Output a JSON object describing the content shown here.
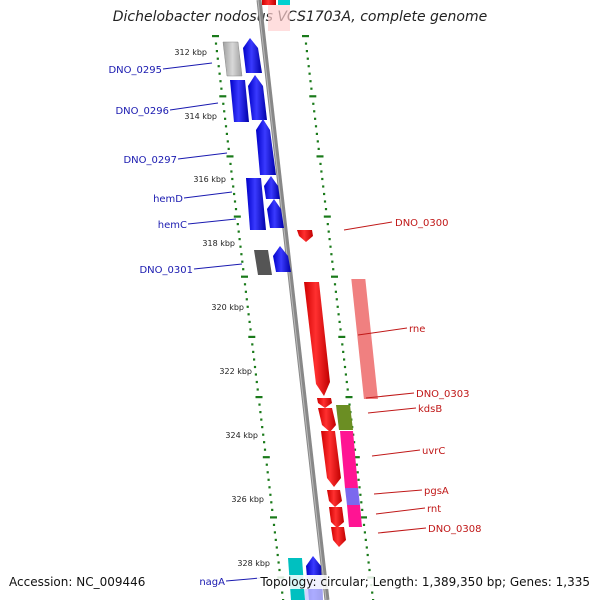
{
  "title": "Dichelobacter nodosus VCS1703A, complete genome",
  "accession": "Accession: NC_009446",
  "topology": "Topology: circular; Length: 1,389,350 bp; Genes: 1,335",
  "kbp_ticks": [
    "312 kbp",
    "314 kbp",
    "316 kbp",
    "318 kbp",
    "320 kbp",
    "322 kbp",
    "324 kbp",
    "326 kbp",
    "328 kbp"
  ],
  "left_labels": [
    "DNO_0295",
    "DNO_0296",
    "DNO_0297",
    "hemD",
    "hemC",
    "DNO_0301",
    "nagA"
  ],
  "right_labels": [
    "DNO_0300",
    "rne",
    "DNO_0303",
    "kdsB",
    "uvrC",
    "pgsA",
    "rnt",
    "DNO_0308"
  ],
  "colors": {
    "forward_gene": "#0000e0",
    "reverse_gene": "#e00000",
    "backbone": "#888888",
    "scale_dots": "#1a7a1a",
    "label_left": "#1a1ab0",
    "label_right": "#c01818",
    "pseudogene_gray": "#b8b8b8",
    "dark_gray": "#555555",
    "pink": "#f08080",
    "olive": "#6b8e23",
    "magenta": "#ff1493",
    "violet": "#7b68ee",
    "cyan": "#00c8c8"
  }
}
